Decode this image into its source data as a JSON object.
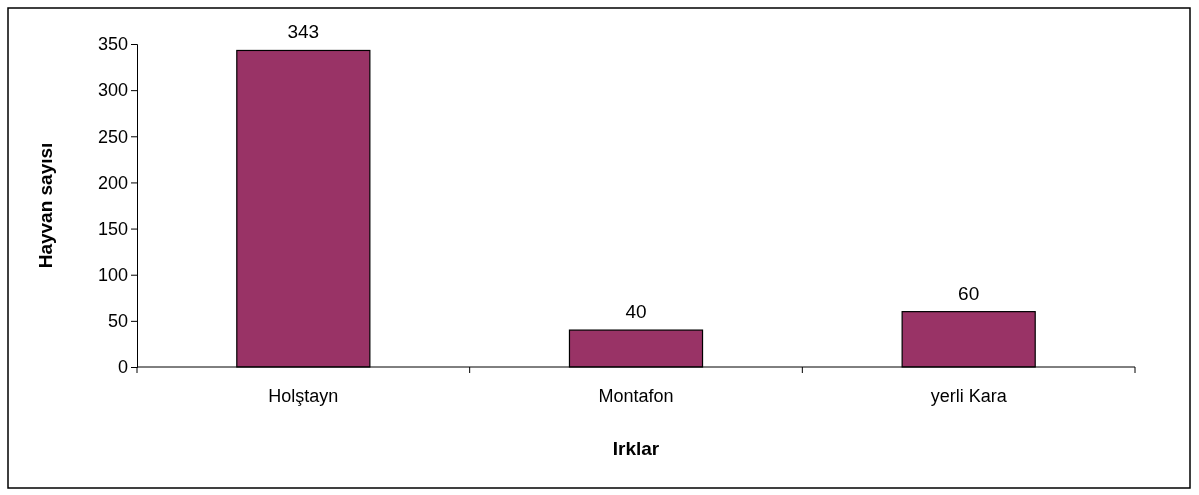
{
  "chart_data": {
    "type": "bar",
    "xlabel": "Irklar",
    "ylabel": "Hayvan sayısı",
    "categories": [
      "Holştayn",
      "Montafon",
      "yerli Kara"
    ],
    "values": [
      343,
      40,
      60
    ],
    "color": "#993366",
    "ylim": [
      0,
      350
    ],
    "yticks": [
      0,
      50,
      100,
      150,
      200,
      250,
      300,
      350
    ],
    "data_labels": true
  }
}
